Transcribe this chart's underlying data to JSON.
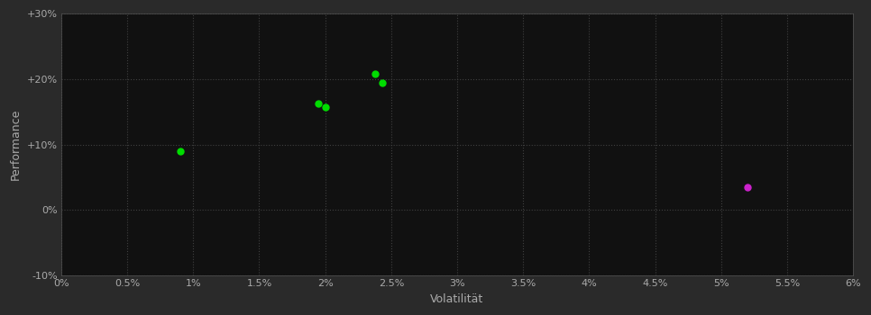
{
  "background_color": "#2a2a2a",
  "plot_bg_color": "#111111",
  "grid_color": "#404040",
  "xlabel": "Volatilität",
  "ylabel": "Performance",
  "xlabel_color": "#aaaaaa",
  "ylabel_color": "#aaaaaa",
  "tick_color": "#aaaaaa",
  "xlim": [
    0.0,
    0.06
  ],
  "ylim": [
    -0.1,
    0.3
  ],
  "xticks": [
    0.0,
    0.005,
    0.01,
    0.015,
    0.02,
    0.025,
    0.03,
    0.035,
    0.04,
    0.045,
    0.05,
    0.055,
    0.06
  ],
  "yticks": [
    -0.1,
    0.0,
    0.1,
    0.2,
    0.3
  ],
  "xtick_labels": [
    "0%",
    "0.5%",
    "1%",
    "1.5%",
    "2%",
    "2.5%",
    "3%",
    "3.5%",
    "4%",
    "4.5%",
    "5%",
    "5.5%",
    "6%"
  ],
  "ytick_labels": [
    "-10%",
    "0%",
    "+10%",
    "+20%",
    "+30%"
  ],
  "green_points": [
    [
      0.009,
      0.09
    ],
    [
      0.0195,
      0.163
    ],
    [
      0.02,
      0.157
    ],
    [
      0.0238,
      0.208
    ],
    [
      0.0243,
      0.194
    ]
  ],
  "magenta_points": [
    [
      0.052,
      0.035
    ]
  ],
  "green_color": "#00dd00",
  "magenta_color": "#cc22cc",
  "marker_size": 5,
  "figsize": [
    9.66,
    3.5
  ],
  "dpi": 100
}
